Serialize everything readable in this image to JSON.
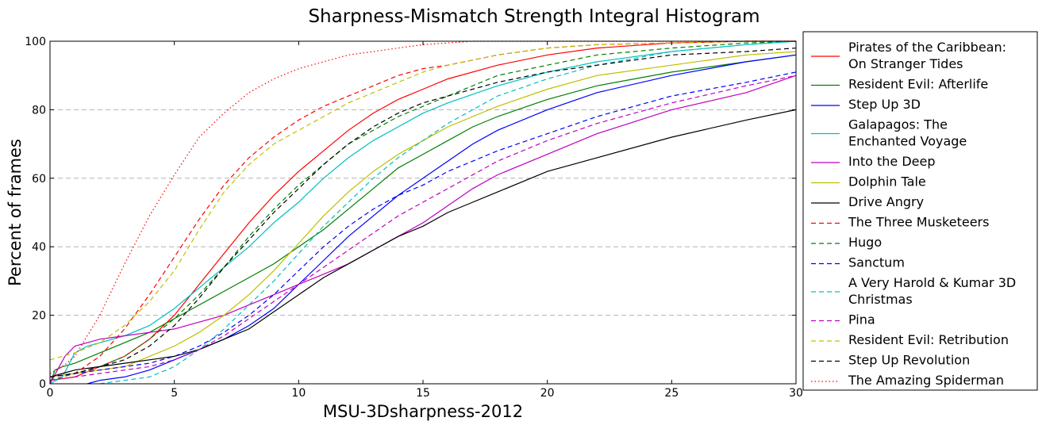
{
  "chart_data": {
    "type": "line",
    "title": "Sharpness-Mismatch Strength Integral Histogram",
    "xlabel": "MSU-3Dsharpness-2012",
    "ylabel": "Percent of frames",
    "xlim": [
      0,
      30
    ],
    "ylim": [
      0,
      100
    ],
    "xticks": [
      "0",
      "5",
      "10",
      "15",
      "20",
      "25",
      "30"
    ],
    "yticks": [
      "0",
      "20",
      "40",
      "60",
      "80",
      "100"
    ],
    "grid": "horizontal dashed",
    "legend_position": "right, outside plot",
    "series": [
      {
        "name": "Pirates of the Caribbean:\nOn Stranger Tides",
        "color": "#ff0000",
        "style": "solid",
        "x": [
          0,
          1,
          2,
          3,
          4,
          5,
          6,
          7,
          8,
          9,
          10,
          11,
          12,
          13,
          14,
          15,
          16,
          18,
          20,
          22,
          25,
          28,
          30
        ],
        "y": [
          1,
          2,
          5,
          8,
          13,
          20,
          29,
          38,
          47,
          55,
          62,
          68,
          74,
          79,
          83,
          86,
          89,
          93,
          96,
          98,
          99.5,
          100,
          100
        ]
      },
      {
        "name": "Resident Evil: Afterlife",
        "color": "#008000",
        "style": "solid",
        "x": [
          0,
          0.2,
          0.5,
          1,
          2,
          3,
          4,
          5,
          6,
          7,
          8,
          9,
          10,
          11,
          12,
          13,
          14,
          15,
          16,
          17,
          18,
          20,
          22,
          25,
          28,
          30
        ],
        "y": [
          0,
          4,
          5,
          6,
          9,
          12,
          15,
          19,
          23,
          27,
          31,
          35,
          40,
          45,
          51,
          57,
          63,
          67,
          71,
          75,
          78,
          83,
          87,
          91,
          94,
          96
        ]
      },
      {
        "name": "Step Up 3D",
        "color": "#0000ff",
        "style": "solid",
        "x": [
          1.5,
          2,
          3,
          4,
          5,
          6,
          7,
          8,
          9,
          10,
          11,
          12,
          13,
          14,
          15,
          16,
          17,
          18,
          20,
          22,
          25,
          28,
          30
        ],
        "y": [
          0,
          1,
          2,
          4,
          7,
          10,
          13,
          17,
          22,
          29,
          36,
          43,
          49,
          55,
          60,
          65,
          70,
          74,
          80,
          85,
          90,
          94,
          96
        ]
      },
      {
        "name": "Galapagos: The\nEnchanted Voyage",
        "color": "#00bfbf",
        "style": "solid",
        "x": [
          0,
          0.5,
          1,
          1.5,
          2,
          3,
          4,
          5,
          6,
          7,
          8,
          9,
          10,
          11,
          12,
          13,
          14,
          15,
          16,
          18,
          20,
          22,
          25,
          28,
          30
        ],
        "y": [
          0,
          2,
          9,
          11,
          12,
          14,
          17,
          22,
          28,
          34,
          40,
          47,
          53,
          60,
          66,
          71,
          75,
          79,
          82,
          87,
          91,
          94,
          97,
          99,
          100
        ]
      },
      {
        "name": "Into the Deep",
        "color": "#bf00bf",
        "style": "solid",
        "x": [
          0,
          0.3,
          0.6,
          1,
          2,
          3,
          4,
          5,
          6,
          7,
          8,
          9,
          10,
          11,
          12,
          13,
          14,
          15,
          16,
          17,
          18,
          20,
          22,
          25,
          28,
          30
        ],
        "y": [
          0,
          4,
          8,
          11,
          13,
          14,
          15,
          16,
          18,
          20,
          23,
          26,
          29,
          32,
          35,
          39,
          43,
          47,
          52,
          57,
          61,
          67,
          73,
          80,
          85,
          90
        ]
      },
      {
        "name": "Dolphin Tale",
        "color": "#bfbf00",
        "style": "solid",
        "x": [
          0,
          1,
          2,
          3,
          4,
          5,
          6,
          7,
          8,
          9,
          10,
          11,
          12,
          13,
          14,
          15,
          16,
          17,
          18,
          20,
          22,
          25,
          28,
          30
        ],
        "y": [
          2,
          3,
          4,
          5,
          8,
          11,
          15,
          20,
          26,
          33,
          41,
          49,
          56,
          62,
          67,
          71,
          75,
          78,
          81,
          86,
          90,
          93,
          96,
          97
        ]
      },
      {
        "name": "Drive Angry",
        "color": "#000000",
        "style": "solid",
        "x": [
          0,
          0.5,
          1,
          2,
          3,
          4,
          5,
          6,
          7,
          8,
          9,
          10,
          11,
          12,
          13,
          14,
          15,
          16,
          17,
          18,
          20,
          22,
          25,
          28,
          30
        ],
        "y": [
          2,
          3,
          4,
          5,
          6,
          7,
          8,
          10,
          13,
          16,
          21,
          26,
          31,
          35,
          39,
          43,
          46,
          50,
          53,
          56,
          62,
          66,
          72,
          77,
          80
        ]
      },
      {
        "name": "The Three Musketeers",
        "color": "#ff0000",
        "style": "dashed",
        "x": [
          0,
          1,
          2,
          3,
          4,
          5,
          6,
          7,
          8,
          9,
          10,
          11,
          12,
          13,
          14,
          15,
          16,
          18,
          20,
          22,
          25,
          28,
          30
        ],
        "y": [
          2,
          3,
          8,
          16,
          26,
          37,
          48,
          58,
          66,
          72,
          77,
          81,
          84,
          87,
          90,
          92,
          93,
          96,
          98,
          99,
          99.5,
          100,
          100
        ]
      },
      {
        "name": "Hugo",
        "color": "#008000",
        "style": "dashed",
        "x": [
          0,
          1,
          2,
          3,
          4,
          5,
          6,
          7,
          8,
          9,
          10,
          11,
          12,
          13,
          14,
          15,
          16,
          18,
          20,
          22,
          25,
          28,
          30
        ],
        "y": [
          1,
          3,
          5,
          8,
          13,
          19,
          26,
          34,
          43,
          51,
          58,
          64,
          70,
          74,
          78,
          81,
          84,
          90,
          93,
          96,
          98,
          99.5,
          100
        ]
      },
      {
        "name": "Sanctum",
        "color": "#0000ff",
        "style": "dashed",
        "x": [
          0,
          1,
          2,
          3,
          4,
          5,
          6,
          7,
          8,
          9,
          10,
          11,
          12,
          13,
          14,
          15,
          16,
          17,
          18,
          20,
          22,
          25,
          28,
          30
        ],
        "y": [
          2,
          3,
          4,
          5,
          6,
          8,
          11,
          15,
          20,
          26,
          33,
          40,
          46,
          51,
          55,
          58,
          62,
          65,
          68,
          73,
          78,
          84,
          88,
          91
        ]
      },
      {
        "name": "A Very Harold & Kumar 3D\nChristmas",
        "color": "#00bfbf",
        "style": "dashed",
        "x": [
          2,
          3,
          4,
          5,
          6,
          7,
          8,
          9,
          10,
          11,
          12,
          13,
          14,
          15,
          16,
          17,
          18,
          20,
          22,
          25,
          28,
          30
        ],
        "y": [
          0,
          1,
          2,
          5,
          10,
          16,
          23,
          30,
          38,
          46,
          53,
          60,
          66,
          71,
          76,
          80,
          84,
          89,
          93,
          97,
          99,
          100
        ]
      },
      {
        "name": "Pina",
        "color": "#bf00bf",
        "style": "dashed",
        "x": [
          0,
          1,
          2,
          3,
          4,
          5,
          6,
          7,
          8,
          9,
          10,
          11,
          12,
          13,
          14,
          15,
          16,
          17,
          18,
          20,
          22,
          25,
          28,
          30
        ],
        "y": [
          1,
          2,
          3,
          4,
          5,
          7,
          10,
          14,
          19,
          24,
          29,
          34,
          39,
          44,
          49,
          53,
          57,
          61,
          65,
          71,
          76,
          82,
          87,
          90
        ]
      },
      {
        "name": "Resident Evil: Retribution",
        "color": "#bfbf00",
        "style": "dashed",
        "x": [
          0,
          0.5,
          1,
          2,
          3,
          4,
          5,
          6,
          7,
          8,
          9,
          10,
          11,
          12,
          13,
          14,
          15,
          16,
          18,
          20,
          22,
          25,
          28,
          30
        ],
        "y": [
          7,
          8,
          9,
          12,
          17,
          24,
          33,
          45,
          56,
          64,
          70,
          74,
          78,
          82,
          85,
          88,
          91,
          93,
          96,
          98,
          99,
          99.5,
          100,
          100
        ]
      },
      {
        "name": "Step Up Revolution",
        "color": "#000000",
        "style": "dashed",
        "x": [
          0,
          1,
          2,
          3,
          4,
          5,
          6,
          7,
          8,
          9,
          10,
          11,
          12,
          13,
          14,
          15,
          16,
          18,
          20,
          22,
          25,
          28,
          30
        ],
        "y": [
          2,
          3,
          5,
          7,
          11,
          17,
          25,
          34,
          42,
          50,
          57,
          64,
          70,
          75,
          79,
          82,
          84,
          88,
          91,
          93,
          96,
          97,
          98
        ]
      },
      {
        "name": "The Amazing Spiderman",
        "color": "#ff0000",
        "style": "dotted",
        "x": [
          0,
          0.5,
          1,
          2,
          3,
          4,
          5,
          6,
          7,
          8,
          9,
          10,
          11,
          12,
          13,
          14,
          15,
          16,
          17,
          18,
          20,
          25,
          30
        ],
        "y": [
          3,
          5,
          8,
          20,
          35,
          49,
          61,
          72,
          79,
          85,
          89,
          92,
          94,
          96,
          97,
          98,
          99,
          99.5,
          100,
          100,
          100,
          100,
          100
        ]
      }
    ]
  }
}
